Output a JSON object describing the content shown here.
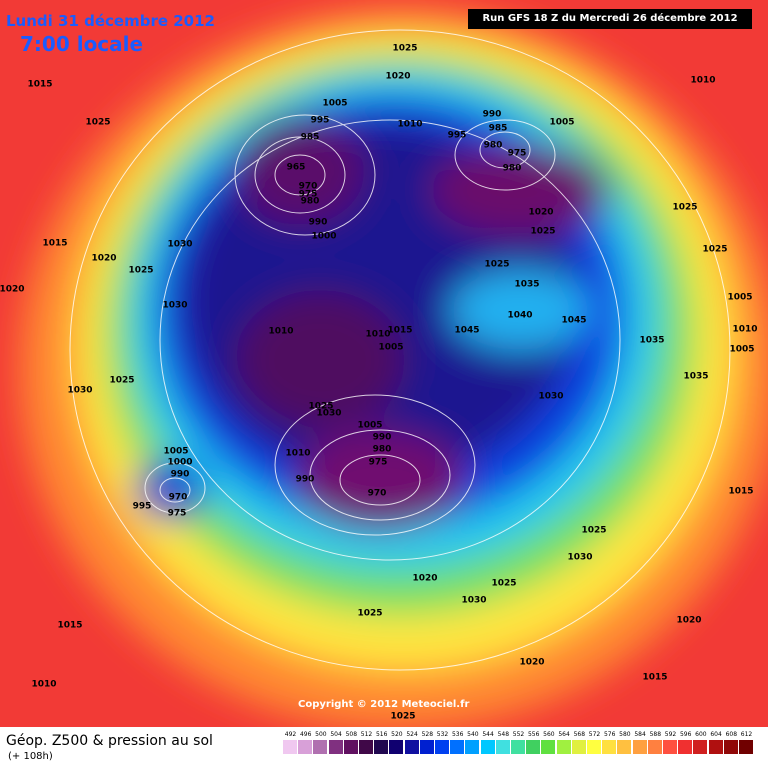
{
  "header": {
    "date": "Lundi 31 décembre 2012",
    "time": "7:00 locale"
  },
  "run": "Run GFS 18 Z du Mercredi 26 décembre 2012",
  "copyright": "Copyright © 2012 Meteociel.fr",
  "footer": {
    "title": "Géop. Z500 & pression au sol",
    "subtitle": "(+ 108h)"
  },
  "legend": {
    "labels": [
      492,
      496,
      500,
      504,
      508,
      512,
      516,
      520,
      524,
      528,
      532,
      536,
      540,
      544,
      548,
      552,
      556,
      560,
      564,
      568,
      572,
      576,
      580,
      584,
      588,
      592,
      596,
      600,
      604,
      608,
      612
    ],
    "colors": [
      "#f0c8f0",
      "#d8a0d8",
      "#b070b0",
      "#803080",
      "#601060",
      "#400848",
      "#200850",
      "#100070",
      "#1010a0",
      "#0020d0",
      "#0040f0",
      "#0070ff",
      "#00a0ff",
      "#00c8ff",
      "#40e0e0",
      "#40e0a0",
      "#40d060",
      "#60e040",
      "#a0f040",
      "#e0f040",
      "#ffff40",
      "#ffe040",
      "#ffc040",
      "#ffa040",
      "#ff8040",
      "#ff5040",
      "#f03030",
      "#d02020",
      "#b01010",
      "#900808",
      "#700000"
    ]
  },
  "isobar_labels": [
    1025,
    1020,
    1015,
    1025,
    1010,
    1005,
    995,
    985,
    965,
    970,
    975,
    980,
    990,
    1000,
    1010,
    995,
    990,
    985,
    980,
    975,
    980,
    1005,
    1020,
    1025,
    1025,
    1025,
    1015,
    1020,
    1030,
    1025,
    1020,
    1030,
    1025,
    1035,
    1040,
    1045,
    1045,
    1035,
    1035,
    1005,
    1010,
    1005,
    1010,
    1010,
    1015,
    1005,
    1025,
    1030,
    1030,
    1025,
    1030,
    1005,
    990,
    980,
    975,
    1010,
    990,
    1005,
    1000,
    990,
    995,
    975,
    970,
    970,
    1015,
    1025,
    1030,
    1020,
    1025,
    1030,
    1025,
    1015,
    1020,
    1020,
    1015,
    1010,
    1025
  ]
}
